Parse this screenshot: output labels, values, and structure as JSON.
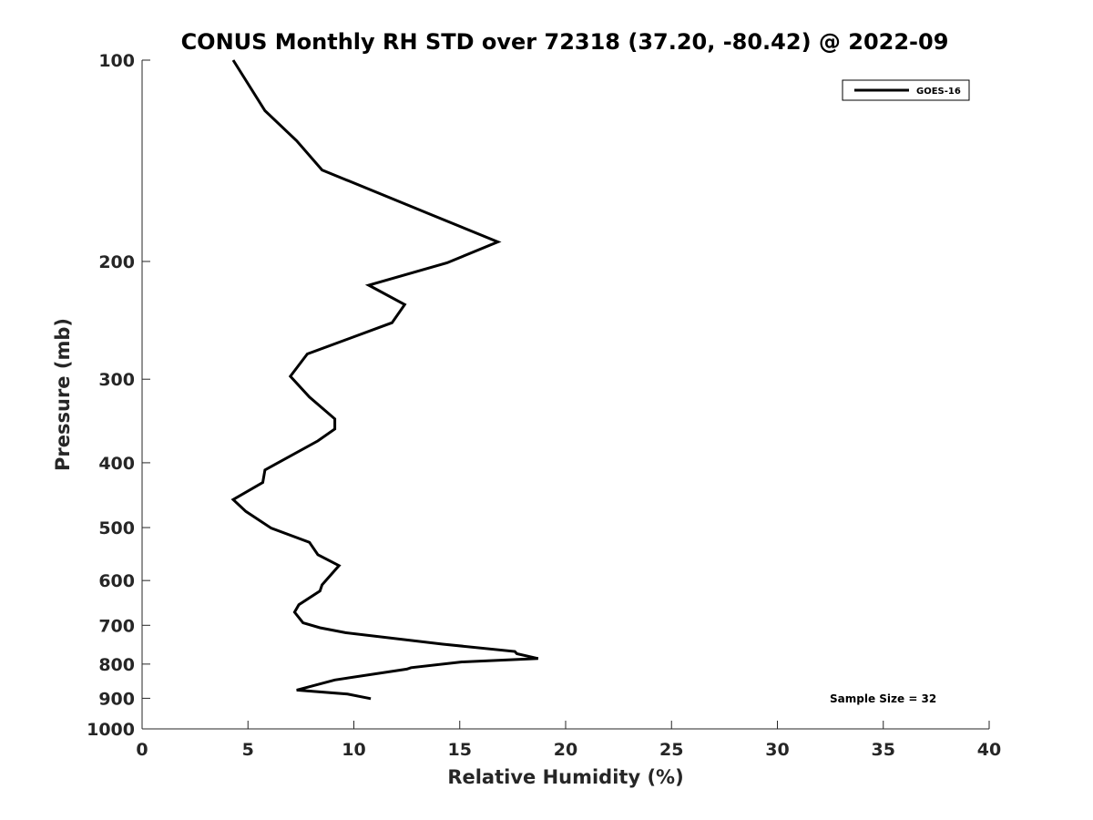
{
  "chart_data": {
    "type": "line",
    "title": "CONUS Monthly RH STD over 72318 (37.20, -80.42) @ 2022-09",
    "xlabel": "Relative Humidity (%)",
    "ylabel": "Pressure (mb)",
    "xlim": [
      0,
      40
    ],
    "ylim": [
      100,
      1000
    ],
    "y_scale": "log",
    "y_reversed": true,
    "x_ticks": [
      0,
      5,
      10,
      15,
      20,
      25,
      30,
      35,
      40
    ],
    "x_tick_labels": [
      "0",
      "5",
      "10",
      "15",
      "20",
      "25",
      "30",
      "35",
      "40"
    ],
    "y_ticks": [
      100,
      200,
      300,
      400,
      500,
      600,
      700,
      800,
      900,
      1000
    ],
    "y_tick_labels": [
      "100",
      "200",
      "300",
      "400",
      "500",
      "600",
      "700",
      "800",
      "900",
      "1000"
    ],
    "grid": false,
    "legend_position": "top-right",
    "annotation": "Sample Size = 32",
    "series": [
      {
        "name": "GOES-16",
        "color": "#000000",
        "x": [
          4.3,
          5.8,
          7.3,
          8.5,
          13.6,
          16.8,
          14.4,
          10.7,
          12.4,
          11.8,
          7.8,
          7.0,
          7.9,
          9.1,
          9.1,
          8.3,
          5.8,
          5.7,
          4.3,
          4.9,
          6.1,
          7.9,
          8.3,
          9.3,
          8.5,
          8.4,
          7.4,
          7.2,
          7.6,
          8.4,
          9.6,
          14.2,
          17.6,
          17.7,
          18.7,
          15.1,
          12.7,
          12.5,
          9.1,
          7.3,
          9.7,
          10.8
        ],
        "y": [
          100,
          119,
          132,
          146,
          170,
          187,
          201,
          217,
          232,
          247,
          275,
          297,
          319,
          344,
          356,
          371,
          410,
          428,
          454,
          473,
          501,
          526,
          549,
          570,
          609,
          622,
          652,
          669,
          694,
          706,
          718,
          747,
          766,
          772,
          785,
          794,
          810,
          814,
          845,
          875,
          887,
          901
        ]
      }
    ]
  }
}
